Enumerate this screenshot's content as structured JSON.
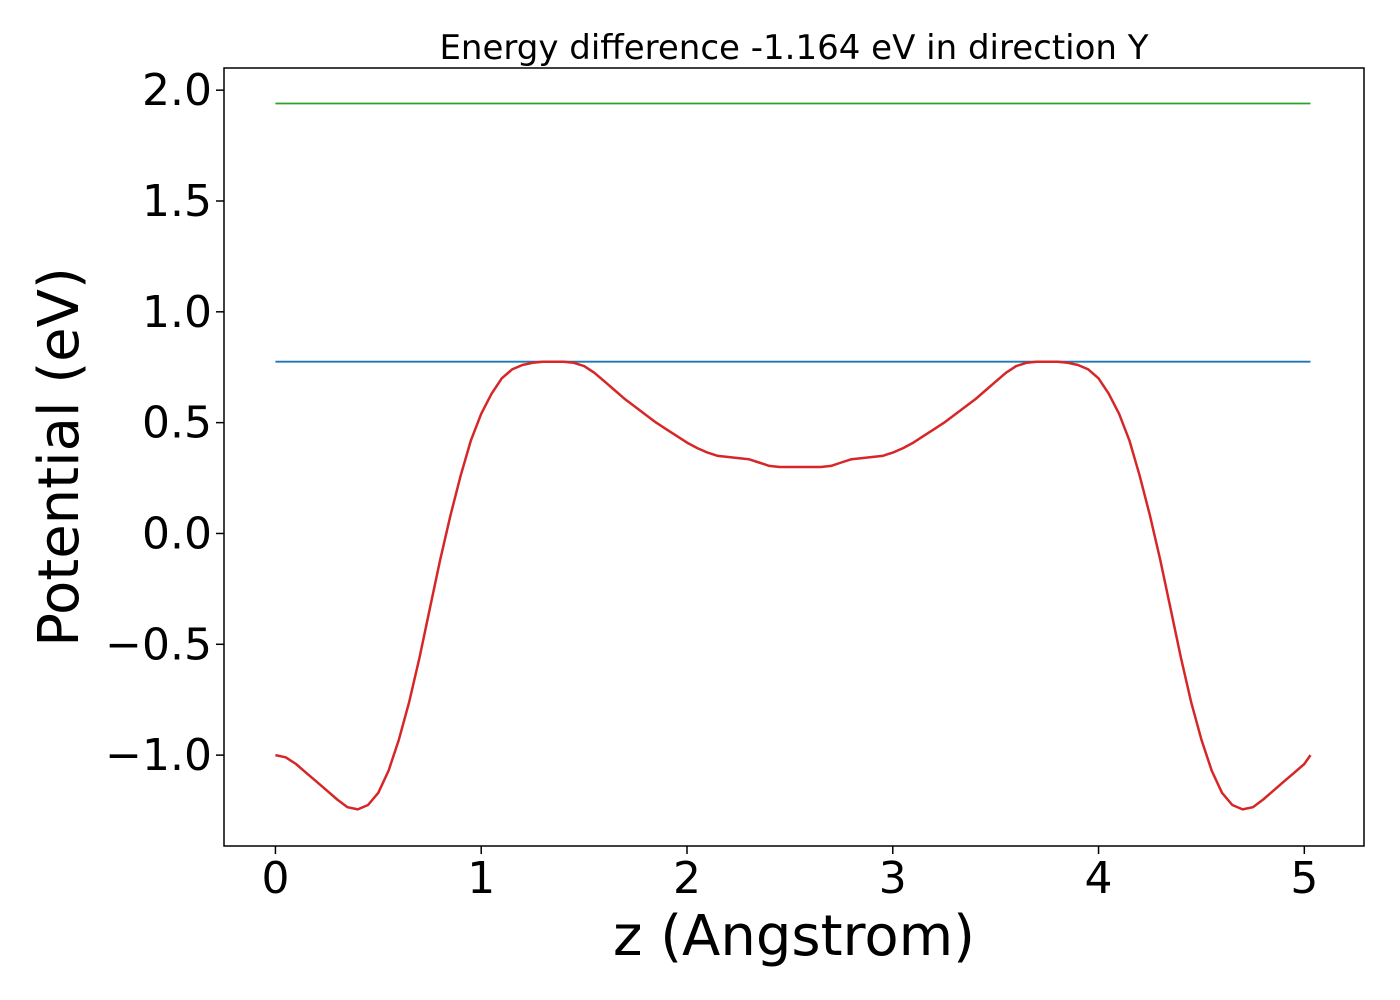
{
  "chart_data": {
    "type": "line",
    "title": "Energy difference -1.164 eV in direction Y",
    "xlabel": "z (Angstrom)",
    "ylabel": "Potential (eV)",
    "xlim": [
      -0.25,
      5.29
    ],
    "ylim": [
      -1.41,
      2.1
    ],
    "xticks": [
      0,
      1,
      2,
      3,
      4,
      5
    ],
    "xtick_labels": [
      "0",
      "1",
      "2",
      "3",
      "4",
      "5"
    ],
    "yticks": [
      -1.0,
      -0.5,
      0.0,
      0.5,
      1.0,
      1.5,
      2.0
    ],
    "ytick_labels": [
      "−1.0",
      "−0.5",
      "0.0",
      "0.5",
      "1.0",
      "1.5",
      "2.0"
    ],
    "grid": false,
    "series": [
      {
        "color": "#d62728",
        "x": [
          0,
          0.05,
          0.1,
          0.15,
          0.2,
          0.25,
          0.3,
          0.35,
          0.4,
          0.45,
          0.5,
          0.55,
          0.6,
          0.65,
          0.7,
          0.75,
          0.8,
          0.85,
          0.9,
          0.95,
          1.0,
          1.05,
          1.1,
          1.15,
          1.2,
          1.25,
          1.3,
          1.35,
          1.4,
          1.45,
          1.5,
          1.55,
          1.6,
          1.65,
          1.7,
          1.75,
          1.8,
          1.85,
          1.9,
          1.95,
          2.0,
          2.05,
          2.1,
          2.15,
          2.2,
          2.25,
          2.3,
          2.35,
          2.4,
          2.45,
          2.5,
          2.55,
          2.6,
          2.65,
          2.7,
          2.75,
          2.8,
          2.85,
          2.9,
          2.95,
          3.0,
          3.05,
          3.1,
          3.15,
          3.2,
          3.25,
          3.3,
          3.35,
          3.4,
          3.45,
          3.5,
          3.55,
          3.6,
          3.65,
          3.7,
          3.75,
          3.8,
          3.85,
          3.9,
          3.95,
          4.0,
          4.05,
          4.1,
          4.15,
          4.2,
          4.25,
          4.3,
          4.35,
          4.4,
          4.45,
          4.5,
          4.55,
          4.6,
          4.65,
          4.7,
          4.75,
          4.8,
          4.85,
          4.9,
          4.95,
          5.0,
          5.03
        ],
        "y": [
          -1.0,
          -1.01,
          -1.04,
          -1.08,
          -1.12,
          -1.16,
          -1.2,
          -1.235,
          -1.245,
          -1.225,
          -1.17,
          -1.07,
          -0.93,
          -0.76,
          -0.56,
          -0.34,
          -0.12,
          0.08,
          0.26,
          0.42,
          0.54,
          0.63,
          0.7,
          0.74,
          0.76,
          0.77,
          0.775,
          0.775,
          0.775,
          0.77,
          0.755,
          0.725,
          0.685,
          0.645,
          0.605,
          0.57,
          0.535,
          0.5,
          0.47,
          0.44,
          0.41,
          0.385,
          0.365,
          0.35,
          0.345,
          0.34,
          0.335,
          0.32,
          0.305,
          0.3,
          0.3,
          0.3,
          0.3,
          0.3,
          0.305,
          0.32,
          0.335,
          0.34,
          0.345,
          0.35,
          0.365,
          0.385,
          0.41,
          0.44,
          0.47,
          0.5,
          0.535,
          0.57,
          0.605,
          0.645,
          0.685,
          0.725,
          0.755,
          0.77,
          0.775,
          0.775,
          0.775,
          0.77,
          0.76,
          0.74,
          0.7,
          0.63,
          0.54,
          0.42,
          0.26,
          0.08,
          -0.12,
          -0.34,
          -0.56,
          -0.76,
          -0.93,
          -1.07,
          -1.17,
          -1.225,
          -1.245,
          -1.235,
          -1.2,
          -1.16,
          -1.12,
          -1.08,
          -1.04,
          -1.0
        ]
      },
      {
        "color": "#1f77b4",
        "x": [
          0,
          5.03
        ],
        "y": [
          0.775,
          0.775
        ]
      },
      {
        "color": "#2ca02c",
        "x": [
          0,
          5.03
        ],
        "y": [
          1.94,
          1.94
        ]
      }
    ]
  }
}
